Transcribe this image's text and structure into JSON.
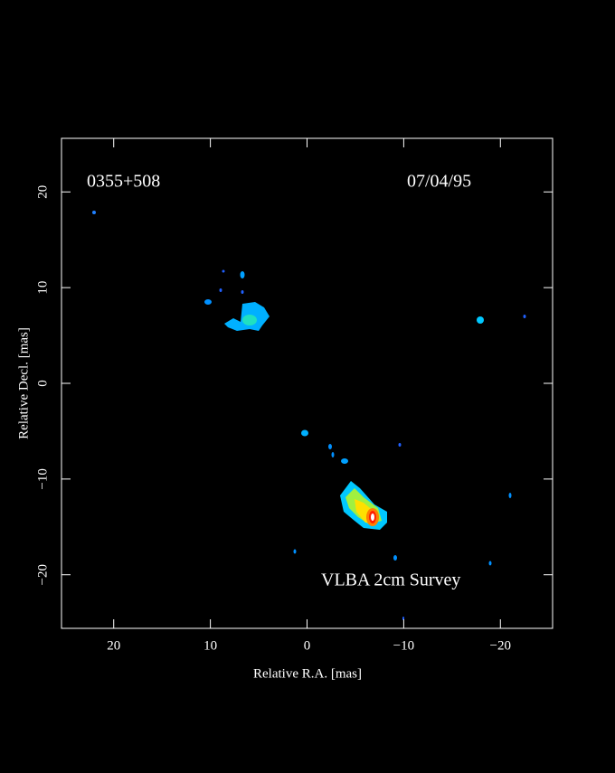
{
  "chart_data": {
    "type": "image",
    "annotations": [
      "0355+508",
      "07/04/95",
      "VLBA 2cm Survey"
    ],
    "x_label": "Relative R.A. [mas]",
    "y_label": "Relative Decl. [mas]",
    "xlim": [
      25.4,
      -25.4
    ],
    "ylim": [
      -25.6,
      25.6
    ],
    "xticks": [
      20,
      10,
      0,
      {
        "value": -10,
        "label": "−10"
      },
      {
        "value": -20,
        "label": "−20"
      }
    ],
    "yticks": [
      {
        "value": -20,
        "label": "−20"
      },
      {
        "value": -10,
        "label": "−10"
      },
      0,
      10,
      20
    ]
  }
}
